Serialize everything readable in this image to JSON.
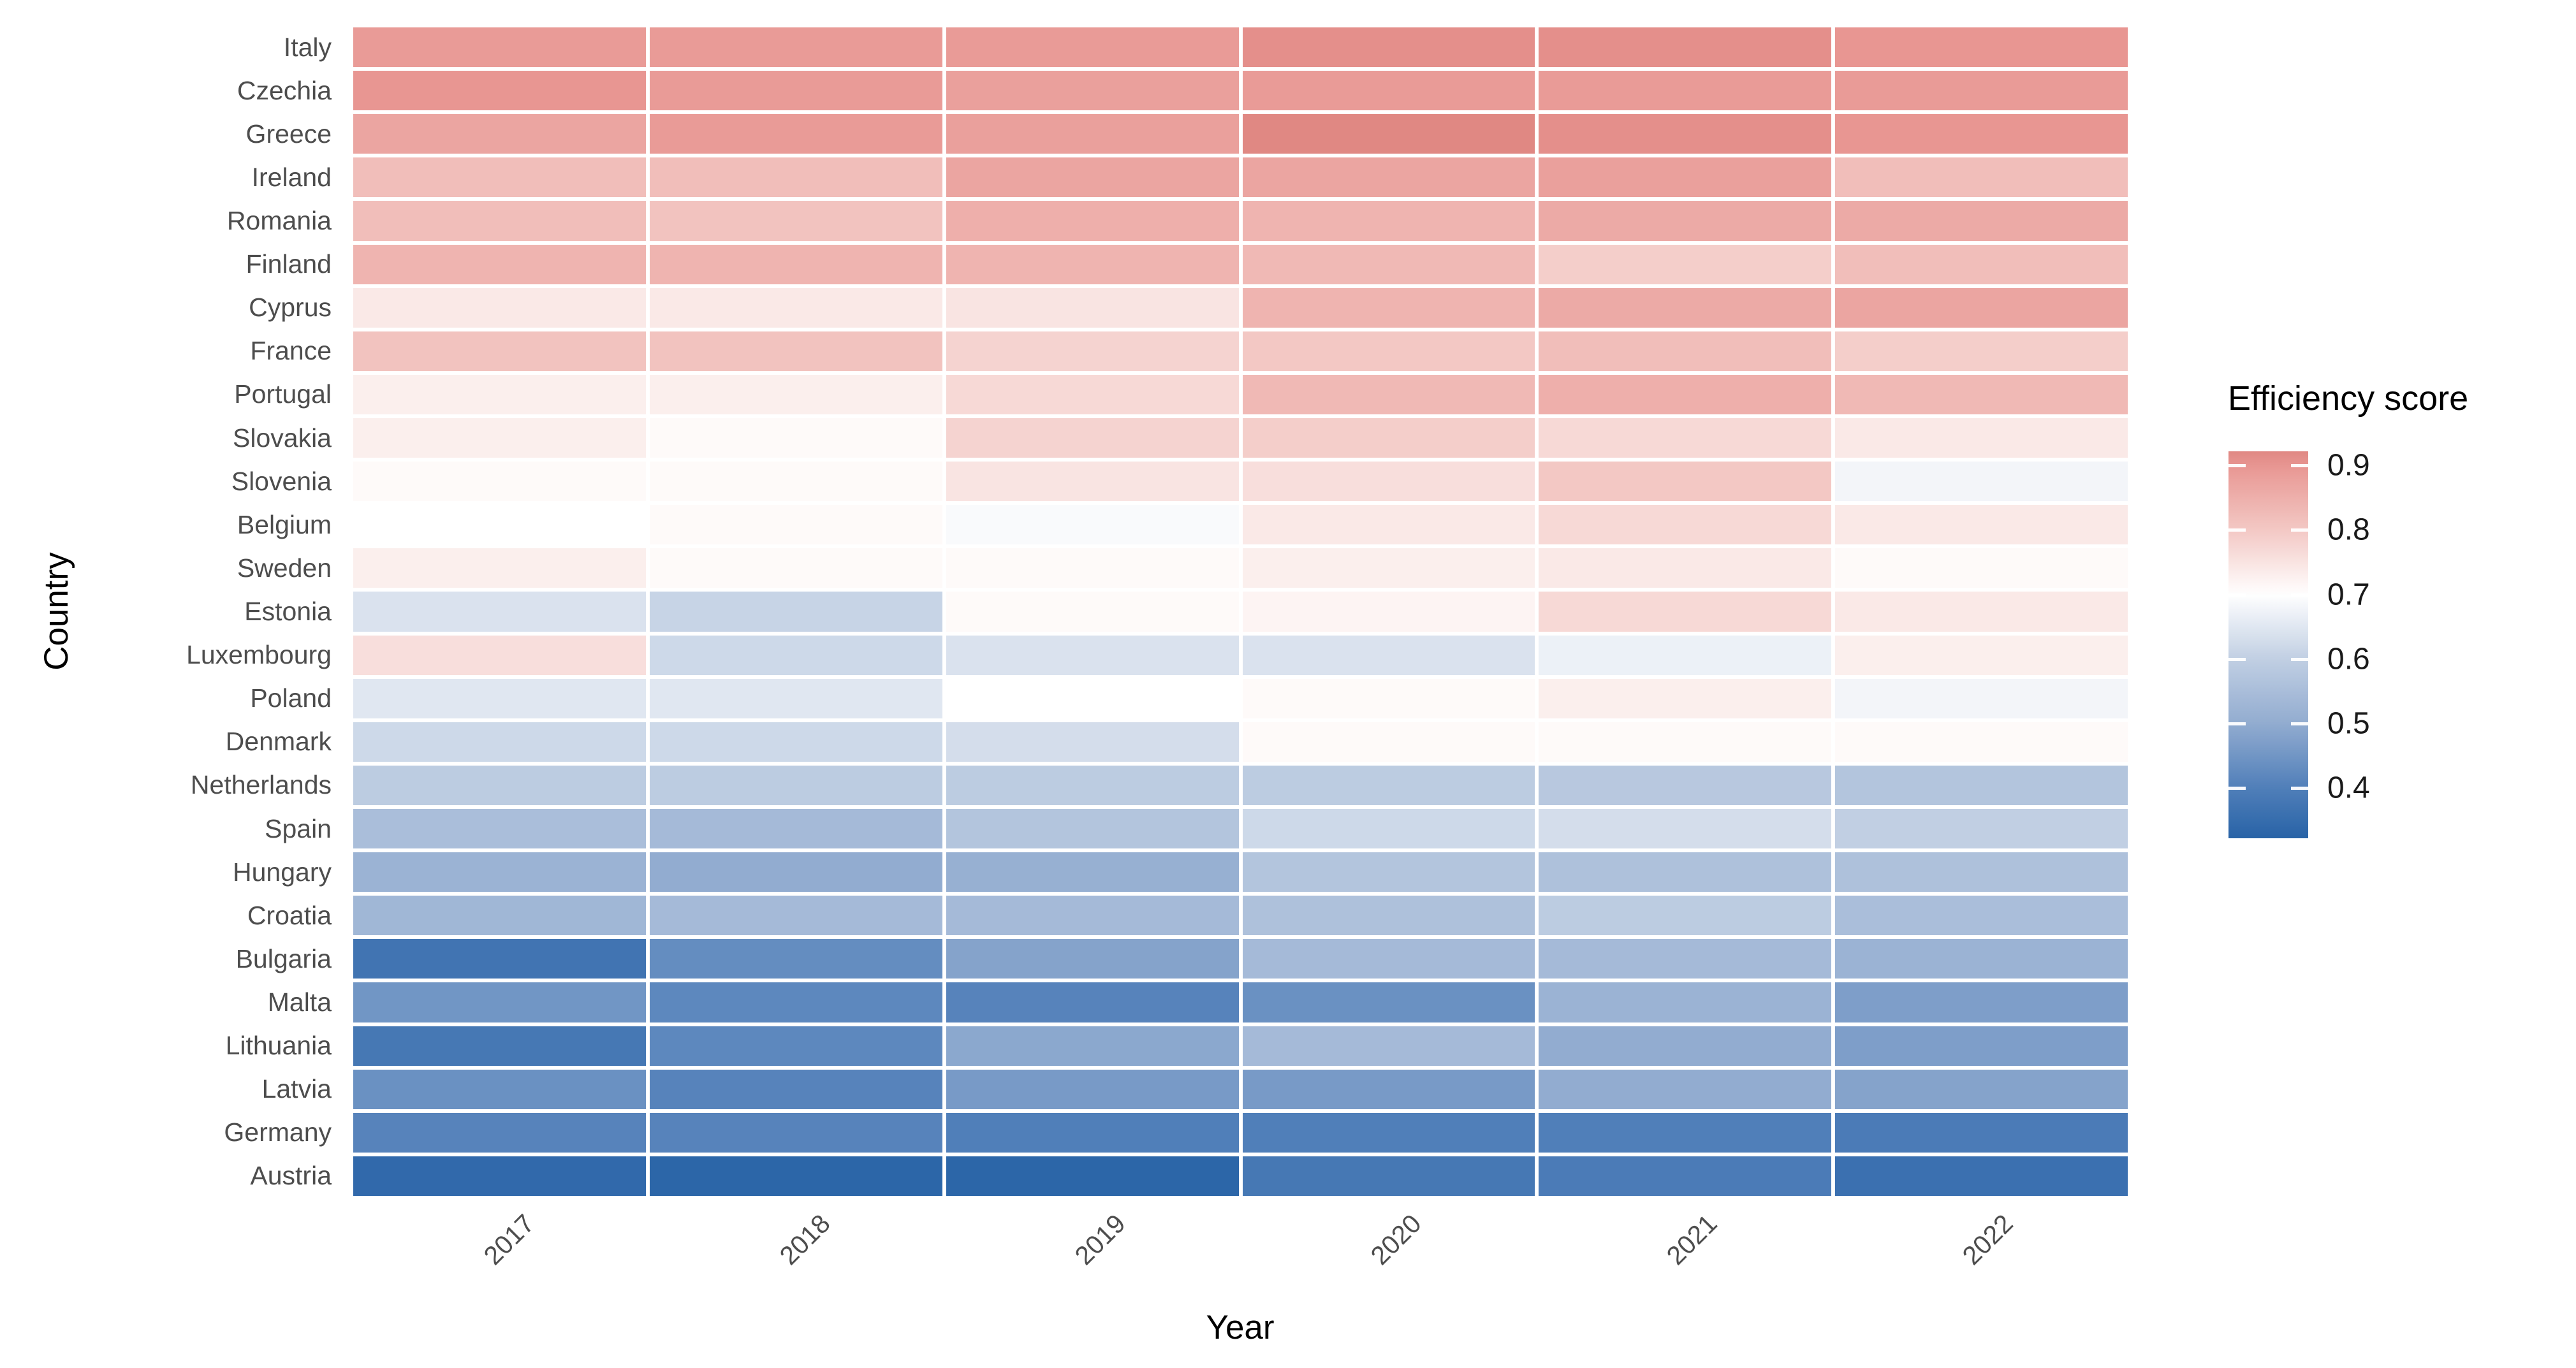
{
  "axes": {
    "x_title": "Year",
    "y_title": "Country"
  },
  "legend": {
    "title": "Efficiency score",
    "tick_labels": [
      "0.9",
      "0.8",
      "0.7",
      "0.6",
      "0.5",
      "0.4"
    ],
    "tick_values": [
      0.9,
      0.8,
      0.7,
      0.6,
      0.5,
      0.4
    ],
    "bar_top_value": 0.922,
    "bar_bottom_value": 0.322
  },
  "colors": {
    "background": "#ffffff",
    "axis_text": "#4d4d4d",
    "axis_title": "#000000",
    "legend_text": "#1a1a1a",
    "tile_gap": "#ffffff",
    "scale_stops": [
      [
        0.32,
        "#2762A6"
      ],
      [
        0.4,
        "#507FB9"
      ],
      [
        0.5,
        "#92ACD0"
      ],
      [
        0.6,
        "#C1CFE3"
      ],
      [
        0.7,
        "#FFFFFF"
      ],
      [
        0.8,
        "#F3C8C4"
      ],
      [
        0.9,
        "#E89692"
      ],
      [
        0.92,
        "#E08883"
      ]
    ]
  },
  "chart_data": {
    "type": "heatmap",
    "title": "",
    "xlabel": "Year",
    "ylabel": "Country",
    "legend_title": "Efficiency score",
    "x": [
      "2017",
      "2018",
      "2019",
      "2020",
      "2021",
      "2022"
    ],
    "colorscale": {
      "type": "diverging",
      "midpoint": 0.7,
      "range": [
        0.32,
        0.92
      ],
      "low": "blue",
      "mid": "white",
      "high": "red"
    },
    "legend_ticks": [
      0.9,
      0.8,
      0.7,
      0.6,
      0.5,
      0.4
    ],
    "categories_y": [
      "Italy",
      "Czechia",
      "Greece",
      "Ireland",
      "Romania",
      "Finland",
      "Cyprus",
      "France",
      "Portugal",
      "Slovakia",
      "Slovenia",
      "Belgium",
      "Sweden",
      "Estonia",
      "Luxembourg",
      "Poland",
      "Denmark",
      "Netherlands",
      "Spain",
      "Hungary",
      "Croatia",
      "Bulgaria",
      "Malta",
      "Lithuania",
      "Latvia",
      "Germany",
      "Austria"
    ],
    "series": [
      {
        "name": "Italy",
        "values": [
          0.89,
          0.89,
          0.89,
          0.91,
          0.91,
          0.9
        ]
      },
      {
        "name": "Czechia",
        "values": [
          0.9,
          0.89,
          0.88,
          0.89,
          0.89,
          0.89
        ]
      },
      {
        "name": "Greece",
        "values": [
          0.87,
          0.89,
          0.88,
          0.92,
          0.91,
          0.9
        ]
      },
      {
        "name": "Ireland",
        "values": [
          0.82,
          0.82,
          0.87,
          0.87,
          0.88,
          0.82
        ]
      },
      {
        "name": "Romania",
        "values": [
          0.82,
          0.81,
          0.85,
          0.84,
          0.86,
          0.86
        ]
      },
      {
        "name": "Finland",
        "values": [
          0.84,
          0.84,
          0.84,
          0.83,
          0.79,
          0.82
        ]
      },
      {
        "name": "Cyprus",
        "values": [
          0.74,
          0.74,
          0.75,
          0.84,
          0.86,
          0.87
        ]
      },
      {
        "name": "France",
        "values": [
          0.81,
          0.81,
          0.78,
          0.8,
          0.82,
          0.79
        ]
      },
      {
        "name": "Portugal",
        "values": [
          0.73,
          0.73,
          0.77,
          0.83,
          0.85,
          0.83
        ]
      },
      {
        "name": "Slovakia",
        "values": [
          0.73,
          0.71,
          0.78,
          0.79,
          0.77,
          0.74
        ]
      },
      {
        "name": "Slovenia",
        "values": [
          0.71,
          0.71,
          0.75,
          0.76,
          0.8,
          0.68
        ]
      },
      {
        "name": "Belgium",
        "values": [
          0.7,
          0.71,
          0.69,
          0.74,
          0.77,
          0.74
        ]
      },
      {
        "name": "Sweden",
        "values": [
          0.73,
          0.71,
          0.71,
          0.73,
          0.74,
          0.71
        ]
      },
      {
        "name": "Estonia",
        "values": [
          0.64,
          0.61,
          0.71,
          0.72,
          0.77,
          0.74
        ]
      },
      {
        "name": "Luxembourg",
        "values": [
          0.76,
          0.62,
          0.64,
          0.64,
          0.67,
          0.73
        ]
      },
      {
        "name": "Poland",
        "values": [
          0.65,
          0.65,
          0.7,
          0.71,
          0.73,
          0.68
        ]
      },
      {
        "name": "Denmark",
        "values": [
          0.62,
          0.62,
          0.63,
          0.71,
          0.71,
          0.71
        ]
      },
      {
        "name": "Netherlands",
        "values": [
          0.59,
          0.59,
          0.59,
          0.59,
          0.58,
          0.57
        ]
      },
      {
        "name": "Spain",
        "values": [
          0.55,
          0.54,
          0.57,
          0.62,
          0.63,
          0.6
        ]
      },
      {
        "name": "Hungary",
        "values": [
          0.52,
          0.5,
          0.51,
          0.57,
          0.56,
          0.56
        ]
      },
      {
        "name": "Croatia",
        "values": [
          0.53,
          0.54,
          0.54,
          0.56,
          0.59,
          0.55
        ]
      },
      {
        "name": "Bulgaria",
        "values": [
          0.37,
          0.43,
          0.48,
          0.54,
          0.54,
          0.52
        ]
      },
      {
        "name": "Malta",
        "values": [
          0.45,
          0.42,
          0.41,
          0.44,
          0.52,
          0.47
        ]
      },
      {
        "name": "Lithuania",
        "values": [
          0.38,
          0.42,
          0.49,
          0.54,
          0.5,
          0.47
        ]
      },
      {
        "name": "Latvia",
        "values": [
          0.44,
          0.41,
          0.46,
          0.46,
          0.5,
          0.48
        ]
      },
      {
        "name": "Germany",
        "values": [
          0.41,
          0.41,
          0.4,
          0.4,
          0.4,
          0.39
        ]
      },
      {
        "name": "Austria",
        "values": [
          0.34,
          0.33,
          0.33,
          0.38,
          0.39,
          0.36
        ]
      }
    ]
  }
}
